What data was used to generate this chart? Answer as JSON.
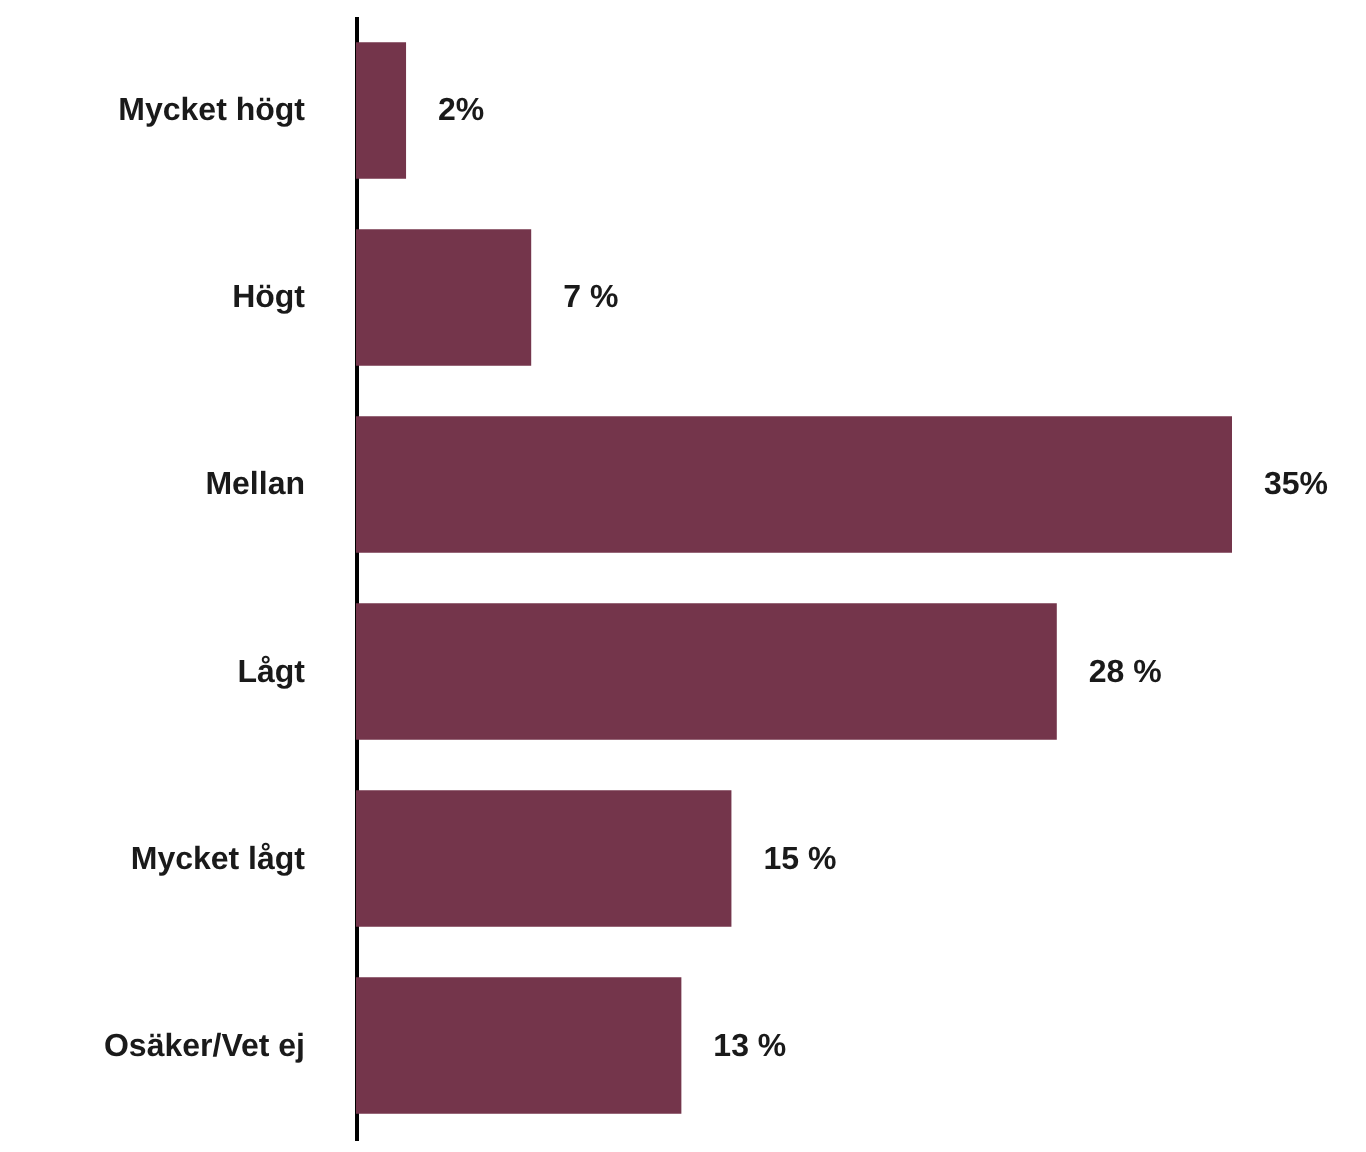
{
  "chart_data": {
    "type": "bar",
    "orientation": "horizontal",
    "categories": [
      "Mycket högt",
      "Högt",
      "Mellan",
      "Lågt",
      "Mycket lågt",
      "Osäker/Vet ej"
    ],
    "values": [
      2,
      7,
      35,
      28,
      15,
      13
    ],
    "value_labels": [
      "2%",
      "7 %",
      "35%",
      "28 %",
      "15 %",
      "13 %"
    ],
    "color": "#74354b"
  }
}
